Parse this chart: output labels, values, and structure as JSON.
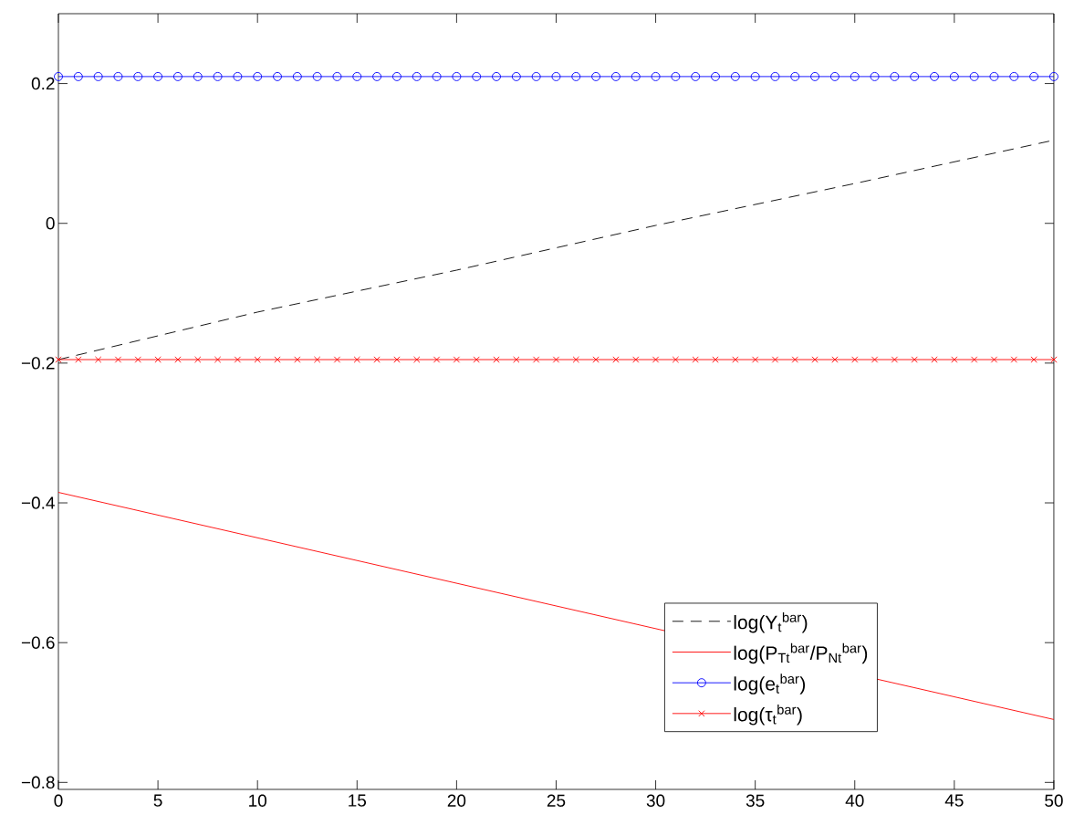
{
  "chart_data": {
    "type": "line",
    "x": [
      0,
      1,
      2,
      3,
      4,
      5,
      6,
      7,
      8,
      9,
      10,
      11,
      12,
      13,
      14,
      15,
      16,
      17,
      18,
      19,
      20,
      21,
      22,
      23,
      24,
      25,
      26,
      27,
      28,
      29,
      30,
      31,
      32,
      33,
      34,
      35,
      36,
      37,
      38,
      39,
      40,
      41,
      42,
      43,
      44,
      45,
      46,
      47,
      48,
      49,
      50
    ],
    "series": [
      {
        "name": "log(Y$_{t}$$^{bar}$)",
        "color": "#000000",
        "line_style": "dashed",
        "marker": "none",
        "x": [
          0,
          10,
          20,
          30,
          40,
          50
        ],
        "values": [
          -0.195,
          -0.127,
          -0.067,
          -0.003,
          0.057,
          0.119
        ]
      },
      {
        "name": "log(P$_{Tt}$$^{bar}$/P$_{Nt}$$^{bar}$)",
        "color": "#ff0000",
        "line_style": "solid",
        "marker": "none",
        "x": [
          0,
          50
        ],
        "values": [
          -0.385,
          -0.71
        ]
      },
      {
        "name": "log(e$_{t}$$^{bar}$)",
        "color": "#0000ff",
        "line_style": "solid",
        "marker": "circle",
        "values": [
          0.21,
          0.21,
          0.21,
          0.21,
          0.21,
          0.21,
          0.21,
          0.21,
          0.21,
          0.21,
          0.21,
          0.21,
          0.21,
          0.21,
          0.21,
          0.21,
          0.21,
          0.21,
          0.21,
          0.21,
          0.21,
          0.21,
          0.21,
          0.21,
          0.21,
          0.21,
          0.21,
          0.21,
          0.21,
          0.21,
          0.21,
          0.21,
          0.21,
          0.21,
          0.21,
          0.21,
          0.21,
          0.21,
          0.21,
          0.21,
          0.21,
          0.21,
          0.21,
          0.21,
          0.21,
          0.21,
          0.21,
          0.21,
          0.21,
          0.21,
          0.21
        ]
      },
      {
        "name": "log(τ$_{t}$$^{bar}$)",
        "color": "#ff0000",
        "line_style": "solid",
        "marker": "cross",
        "values": [
          -0.195,
          -0.195,
          -0.195,
          -0.195,
          -0.195,
          -0.195,
          -0.195,
          -0.195,
          -0.195,
          -0.195,
          -0.195,
          -0.195,
          -0.195,
          -0.195,
          -0.195,
          -0.195,
          -0.195,
          -0.195,
          -0.195,
          -0.195,
          -0.195,
          -0.195,
          -0.195,
          -0.195,
          -0.195,
          -0.195,
          -0.195,
          -0.195,
          -0.195,
          -0.195,
          -0.195,
          -0.195,
          -0.195,
          -0.195,
          -0.195,
          -0.195,
          -0.195,
          -0.195,
          -0.195,
          -0.195,
          -0.195,
          -0.195,
          -0.195,
          -0.195,
          -0.195,
          -0.195,
          -0.195,
          -0.195,
          -0.195,
          -0.195,
          -0.195
        ]
      }
    ],
    "xlim": [
      0,
      50
    ],
    "ylim": [
      -0.81,
      0.3
    ],
    "xticks": [
      0,
      5,
      10,
      15,
      20,
      25,
      30,
      35,
      40,
      45,
      50
    ],
    "yticks": [
      {
        "value": -0.8,
        "label": "−0.8"
      },
      {
        "value": -0.6,
        "label": "−0.6"
      },
      {
        "value": -0.4,
        "label": "−0.4"
      },
      {
        "value": -0.2,
        "label": "−0.2"
      },
      0,
      0.2
    ],
    "legend": "bottom right"
  }
}
